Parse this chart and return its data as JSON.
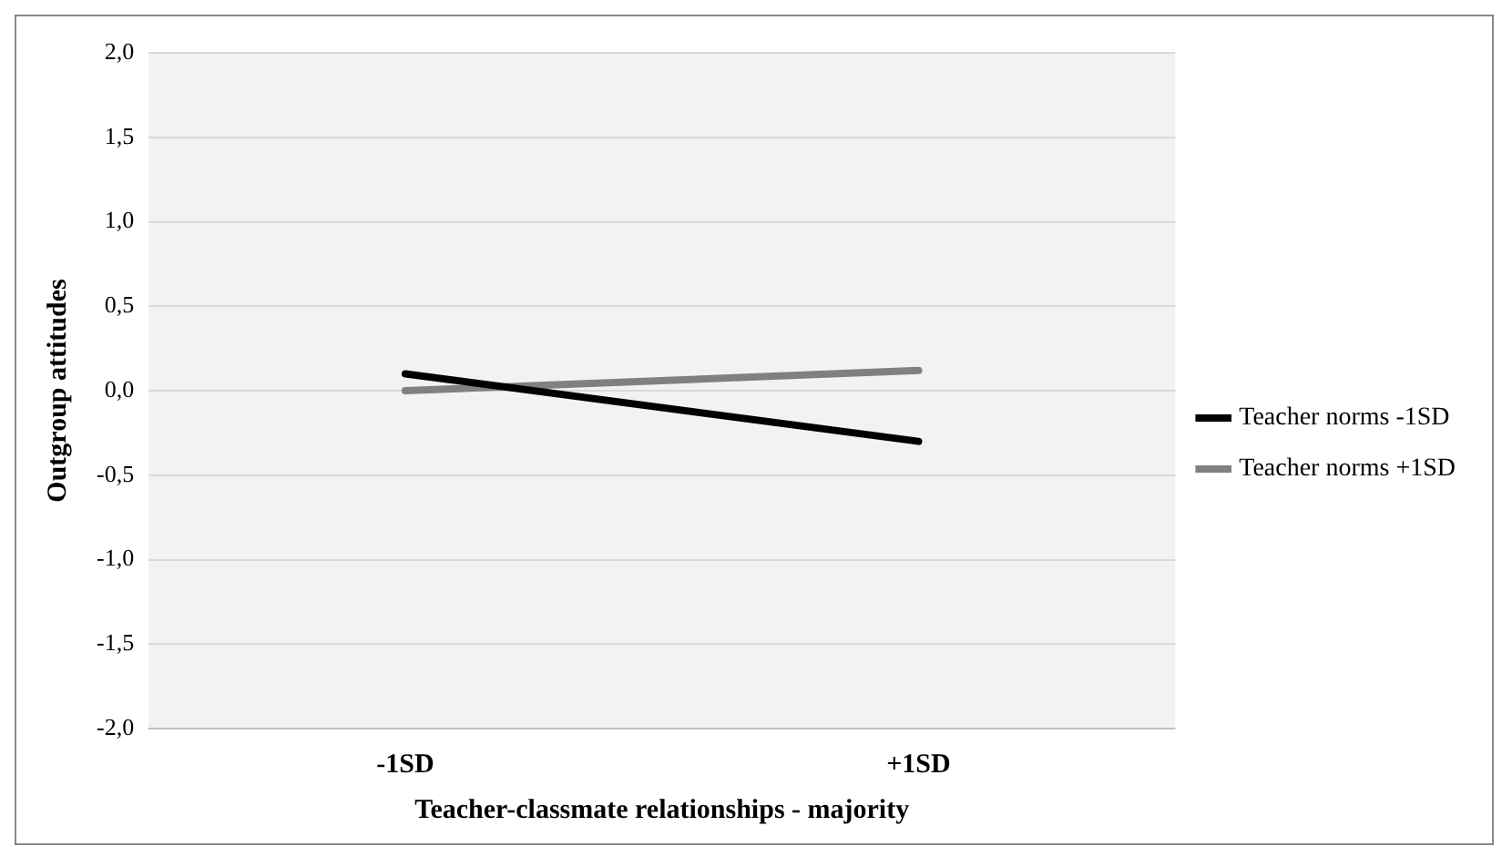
{
  "chart_data": {
    "type": "line",
    "xlabel": "Teacher-classmate relationships - majority",
    "ylabel": "Outgroup attitudes",
    "categories": [
      "-1SD",
      "+1SD"
    ],
    "series": [
      {
        "name": "Teacher norms -1SD",
        "color": "#000000",
        "values": [
          0.1,
          -0.3
        ]
      },
      {
        "name": "Teacher norms +1SD",
        "color": "#808080",
        "values": [
          0.0,
          0.12
        ]
      }
    ],
    "ylim": [
      -2,
      2
    ],
    "yticks": [
      {
        "value": -2,
        "label": "-2,0"
      },
      {
        "value": -1.5,
        "label": "-1,5"
      },
      {
        "value": -1,
        "label": "-1,0"
      },
      {
        "value": -0.5,
        "label": "-0,5"
      },
      {
        "value": 0,
        "label": "0,0"
      },
      {
        "value": 0.5,
        "label": "0,5"
      },
      {
        "value": 1,
        "label": "1,0"
      },
      {
        "value": 1.5,
        "label": "1,5"
      },
      {
        "value": 2,
        "label": "2,0"
      }
    ],
    "grid": "y",
    "legend": "right",
    "marker": "none",
    "line_style": "solid"
  }
}
